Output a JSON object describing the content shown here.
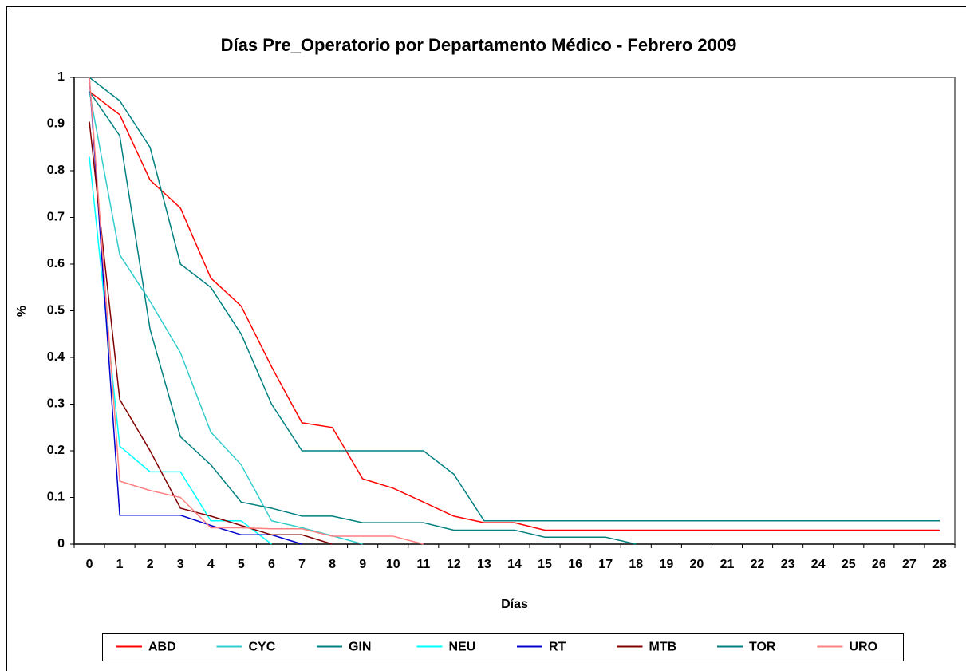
{
  "chart_data": {
    "type": "line",
    "title": "Días Pre_Operatorio por Departamento Médico - Febrero 2009",
    "x_label": "Días",
    "y_label": "%",
    "categories": [
      "0",
      "1",
      "2",
      "3",
      "4",
      "5",
      "6",
      "7",
      "8",
      "9",
      "10",
      "11",
      "12",
      "13",
      "14",
      "15",
      "16",
      "17",
      "18",
      "19",
      "20",
      "21",
      "22",
      "23",
      "24",
      "25",
      "26",
      "27",
      "28"
    ],
    "ylim": [
      0,
      1
    ],
    "yticks": [
      0,
      0.1,
      0.2,
      0.3,
      0.4,
      0.5,
      0.6,
      0.7,
      0.8,
      0.9,
      1
    ],
    "legend": "bottom",
    "series": [
      {
        "name": "ABD",
        "color": "#ff0000",
        "values": [
          0.97,
          0.92,
          0.78,
          0.72,
          0.57,
          0.51,
          0.38,
          0.26,
          0.25,
          0.14,
          0.12,
          0.09,
          0.06,
          0.046,
          0.046,
          0.03,
          0.03,
          0.03,
          0.03,
          0.03,
          0.03,
          0.03,
          0.03,
          0.03,
          0.03,
          0.03,
          0.03,
          0.03,
          0.03
        ]
      },
      {
        "name": "CYC",
        "color": "#33cccc",
        "values": [
          0.97,
          0.62,
          0.52,
          0.41,
          0.24,
          0.17,
          0.05,
          0.035,
          0.018,
          0,
          null,
          null,
          null,
          null,
          null,
          null,
          null,
          null,
          null,
          null,
          null,
          null,
          null,
          null,
          null,
          null,
          null,
          null,
          null
        ]
      },
      {
        "name": "GIN",
        "color": "#008080",
        "values": [
          0.97,
          0.875,
          0.46,
          0.23,
          0.17,
          0.09,
          0.077,
          0.06,
          0.06,
          0.046,
          0.046,
          0.046,
          0.03,
          0.03,
          0.03,
          0.015,
          0.015,
          0.015,
          0,
          null,
          null,
          null,
          null,
          null,
          null,
          null,
          null,
          null,
          null
        ]
      },
      {
        "name": "NEU",
        "color": "#00ffff",
        "values": [
          0.83,
          0.21,
          0.155,
          0.155,
          0.05,
          0.05,
          0,
          null,
          null,
          null,
          null,
          null,
          null,
          null,
          null,
          null,
          null,
          null,
          null,
          null,
          null,
          null,
          null,
          null,
          null,
          null,
          null,
          null,
          null
        ]
      },
      {
        "name": "RT",
        "color": "#0000cc",
        "values": [
          1,
          0.062,
          0.062,
          0.062,
          0.04,
          0.02,
          0.02,
          0,
          null,
          null,
          null,
          null,
          null,
          null,
          null,
          null,
          null,
          null,
          null,
          null,
          null,
          null,
          null,
          null,
          null,
          null,
          null,
          null,
          null
        ]
      },
      {
        "name": "MTB",
        "color": "#800000",
        "values": [
          0.905,
          0.31,
          0.2,
          0.077,
          0.06,
          0.04,
          0.02,
          0.02,
          0,
          null,
          null,
          null,
          null,
          null,
          null,
          null,
          null,
          null,
          null,
          null,
          null,
          null,
          null,
          null,
          null,
          null,
          null,
          null,
          null
        ]
      },
      {
        "name": "TOR",
        "color": "#008080",
        "values": [
          1,
          0.95,
          0.85,
          0.6,
          0.55,
          0.45,
          0.3,
          0.2,
          0.2,
          0.2,
          0.2,
          0.2,
          0.15,
          0.05,
          0.05,
          0.05,
          0.05,
          0.05,
          0.05,
          0.05,
          0.05,
          0.05,
          0.05,
          0.05,
          0.05,
          0.05,
          0.05,
          0.05,
          0.05
        ]
      },
      {
        "name": "URO",
        "color": "#ff8080",
        "values": [
          1,
          0.135,
          0.115,
          0.1,
          0.035,
          0.035,
          0.033,
          0.033,
          0.017,
          0.017,
          0.017,
          0,
          null,
          null,
          null,
          null,
          null,
          null,
          null,
          null,
          null,
          null,
          null,
          null,
          null,
          null,
          null,
          null,
          null
        ]
      }
    ]
  }
}
